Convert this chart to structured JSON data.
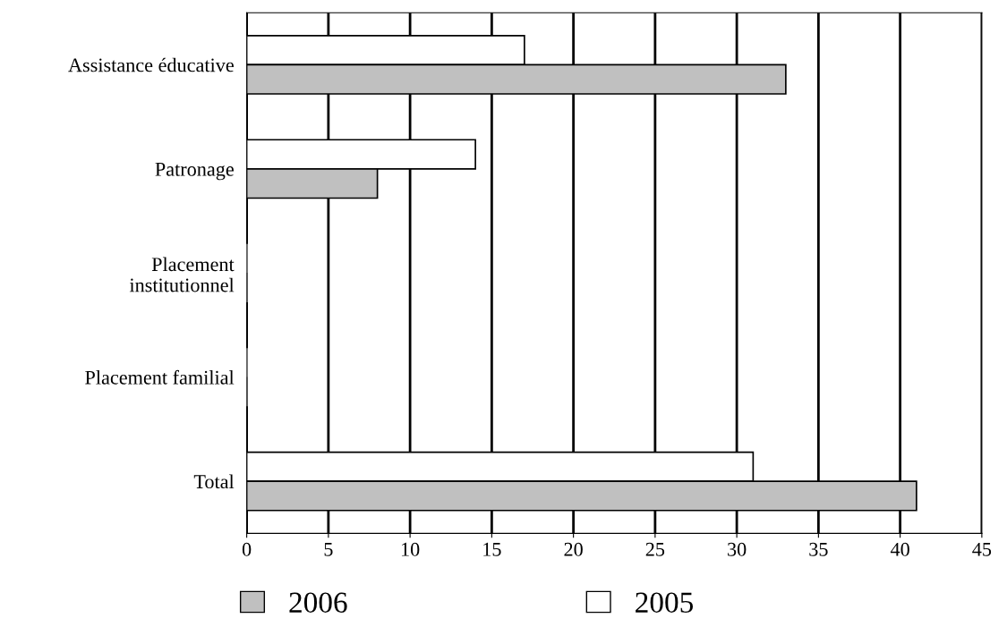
{
  "chart_data": {
    "type": "bar",
    "orientation": "horizontal",
    "categories": [
      "Assistance éducative",
      "Patronage",
      "Placement\ninstitutionnel",
      "Placement familial",
      "Total"
    ],
    "series": [
      {
        "name": "2005",
        "color": "#ffffff",
        "values": [
          17,
          14,
          0,
          0,
          31
        ]
      },
      {
        "name": "2006",
        "color": "#c0c0c0",
        "values": [
          33,
          8,
          0,
          0,
          41
        ]
      }
    ],
    "xlim": [
      0,
      45
    ],
    "xticks": [
      0,
      5,
      10,
      15,
      20,
      25,
      30,
      35,
      40,
      45
    ],
    "grid": "x",
    "legend": "bottom"
  }
}
